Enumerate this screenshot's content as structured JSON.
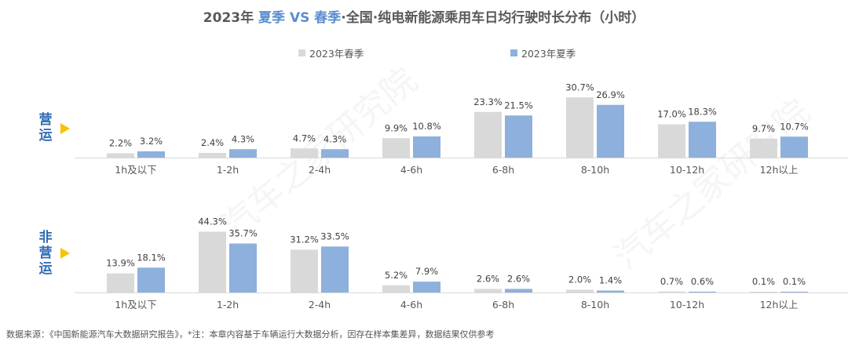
{
  "title": {
    "year": "2023年",
    "summer": "夏季",
    "vs": "VS",
    "spring": "春季",
    "rest": "·全国·纯电新能源乘用车日均行驶时长分布（小时）"
  },
  "legend": {
    "spring": "2023年春季",
    "summer": "2023年夏季"
  },
  "side_labels": {
    "operating": [
      "营",
      "运"
    ],
    "non_operating": [
      "非",
      "营",
      "运"
    ]
  },
  "footer": "数据来源：《中国新能源汽车大数据研究报告》，*注：本章内容基于车辆运行大数据分析，因存在样本集差异，数据结果仅供参考",
  "watermark": "汽车之家研究院",
  "colors": {
    "spring": "#d9d9d9",
    "summer": "#8eb0dc",
    "title_accent": "#5b8ed0",
    "side_label": "#2f6db5",
    "arrow": "#f5c400"
  },
  "chart_data": [
    {
      "type": "bar",
      "panel": "营运",
      "categories": [
        "1h及以下",
        "1-2h",
        "2-4h",
        "4-6h",
        "6-8h",
        "8-10h",
        "10-12h",
        "12h以上"
      ],
      "series": [
        {
          "name": "2023年春季",
          "values": [
            2.2,
            2.4,
            4.7,
            9.9,
            23.3,
            30.7,
            17.0,
            9.7
          ],
          "labels": [
            "2.2%",
            "2.4%",
            "4.7%",
            "9.9%",
            "23.3%",
            "30.7%",
            "17.0%",
            "9.7%"
          ]
        },
        {
          "name": "2023年夏季",
          "values": [
            3.2,
            4.3,
            4.3,
            10.8,
            21.5,
            26.9,
            18.3,
            10.7
          ],
          "labels": [
            "3.2%",
            "4.3%",
            "4.3%",
            "10.8%",
            "21.5%",
            "26.9%",
            "18.3%",
            "10.7%"
          ]
        }
      ]
    },
    {
      "type": "bar",
      "panel": "非营运",
      "categories": [
        "1h及以下",
        "1-2h",
        "2-4h",
        "4-6h",
        "6-8h",
        "8-10h",
        "10-12h",
        "12h以上"
      ],
      "series": [
        {
          "name": "2023年春季",
          "values": [
            13.9,
            44.3,
            31.2,
            5.2,
            2.6,
            2.0,
            0.7,
            0.1
          ],
          "labels": [
            "13.9%",
            "44.3%",
            "31.2%",
            "5.2%",
            "2.6%",
            "2.0%",
            "0.7%",
            "0.1%"
          ]
        },
        {
          "name": "2023年夏季",
          "values": [
            18.1,
            35.7,
            33.5,
            7.9,
            2.6,
            1.4,
            0.6,
            0.1
          ],
          "labels": [
            "18.1%",
            "35.7%",
            "33.5%",
            "7.9%",
            "2.6%",
            "1.4%",
            "0.6%",
            "0.1%"
          ]
        }
      ]
    }
  ]
}
